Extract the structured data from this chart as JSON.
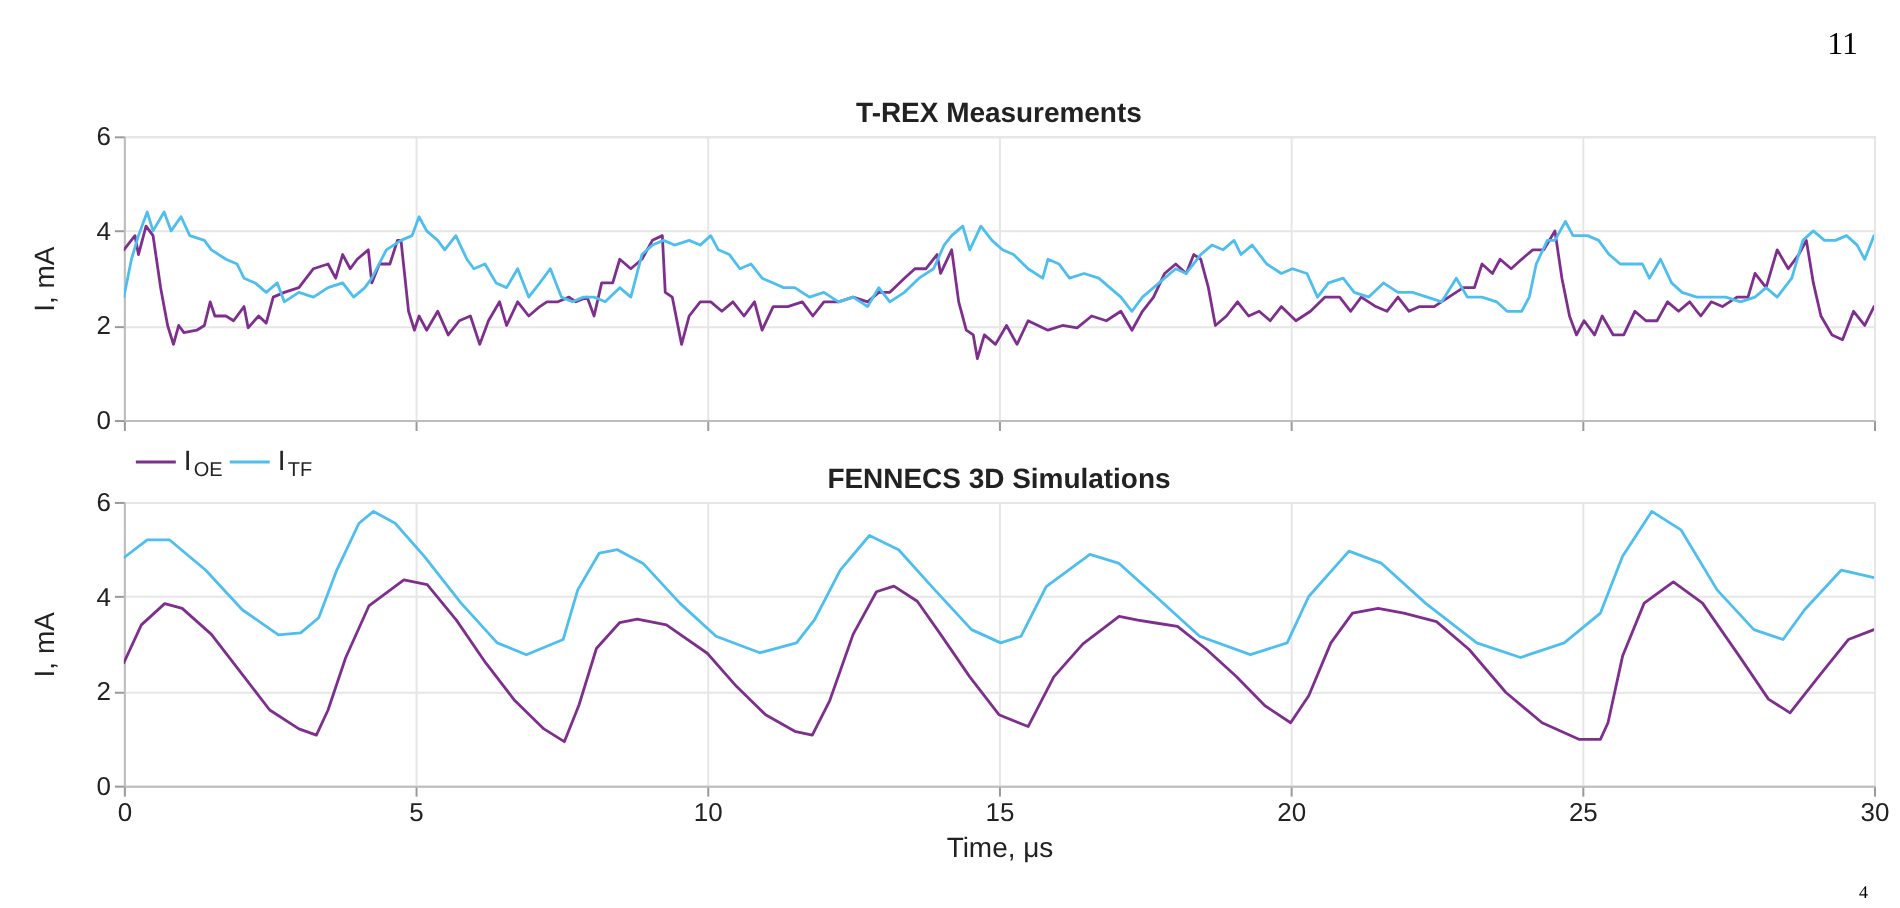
{
  "chart_data": [
    {
      "type": "line",
      "title": "T-REX Measurements",
      "ylabel": "I, mA",
      "xlim": [
        0,
        30
      ],
      "ylim": [
        0,
        6
      ],
      "xticks": [
        0,
        5,
        10,
        15,
        20,
        25,
        30
      ],
      "yticks": [
        0,
        2,
        4,
        6
      ],
      "grid": true,
      "tick_labels": "y",
      "annotations": [
        "11"
      ],
      "series": [
        {
          "color": "#7e2f8e",
          "x": [
            0,
            0.19,
            0.25,
            0.38,
            0.5,
            0.63,
            0.75,
            0.85,
            0.94,
            1.03,
            1.25,
            1.38,
            1.48,
            1.56,
            1.75,
            1.88,
            2.06,
            2.13,
            2.31,
            2.44,
            2.56,
            2.75,
            3.0,
            3.25,
            3.5,
            3.63,
            3.75,
            3.88,
            4.0,
            4.19,
            4.25,
            4.38,
            4.56,
            4.69,
            4.75,
            4.88,
            4.98,
            5.06,
            5.19,
            5.38,
            5.56,
            5.75,
            5.94,
            6.1,
            6.25,
            6.44,
            6.56,
            6.75,
            6.94,
            7.13,
            7.25,
            7.44,
            7.63,
            7.75,
            7.94,
            8.06,
            8.19,
            8.38,
            8.5,
            8.69,
            8.88,
            9.06,
            9.23,
            9.28,
            9.4,
            9.56,
            9.69,
            9.88,
            10.06,
            10.25,
            10.44,
            10.63,
            10.81,
            10.94,
            11.13,
            11.38,
            11.63,
            11.81,
            12.0,
            12.25,
            12.5,
            12.75,
            12.94,
            13.13,
            13.38,
            13.56,
            13.75,
            13.94,
            14.0,
            14.19,
            14.31,
            14.44,
            14.56,
            14.63,
            14.75,
            14.94,
            15.13,
            15.31,
            15.5,
            15.75,
            15.84,
            16.09,
            16.34,
            16.59,
            16.84,
            17.09,
            17.28,
            17.46,
            17.65,
            17.84,
            18.03,
            18.21,
            18.34,
            18.46,
            18.59,
            18.71,
            18.9,
            19.09,
            19.28,
            19.46,
            19.65,
            19.84,
            20.09,
            20.34,
            20.59,
            20.84,
            21.03,
            21.21,
            21.46,
            21.65,
            21.84,
            22.03,
            22.21,
            22.46,
            22.71,
            22.96,
            23.15,
            23.28,
            23.46,
            23.59,
            23.78,
            23.96,
            24.15,
            24.34,
            24.53,
            24.65,
            24.78,
            24.9,
            25.03,
            25.21,
            25.34,
            25.53,
            25.71,
            25.9,
            26.09,
            26.28,
            26.46,
            26.65,
            26.84,
            27.03,
            27.21,
            27.4,
            27.65,
            27.84,
            27.96,
            28.15,
            28.34,
            28.53,
            28.71,
            28.84,
            28.96,
            29.09,
            29.28,
            29.46,
            29.65,
            29.84,
            30
          ],
          "values": [
            3.6,
            3.9,
            3.5,
            4.1,
            3.9,
            2.8,
            2.0,
            1.6,
            2.0,
            1.85,
            1.9,
            2.0,
            2.5,
            2.2,
            2.2,
            2.1,
            2.4,
            1.95,
            2.2,
            2.05,
            2.6,
            2.7,
            2.8,
            3.2,
            3.3,
            3.0,
            3.5,
            3.2,
            3.4,
            3.6,
            2.9,
            3.3,
            3.3,
            3.8,
            3.8,
            2.3,
            1.9,
            2.2,
            1.9,
            2.3,
            1.8,
            2.1,
            2.2,
            1.6,
            2.1,
            2.5,
            2.0,
            2.5,
            2.2,
            2.4,
            2.5,
            2.5,
            2.6,
            2.5,
            2.6,
            2.2,
            2.9,
            2.9,
            3.4,
            3.2,
            3.4,
            3.8,
            3.9,
            2.7,
            2.6,
            1.6,
            2.2,
            2.5,
            2.5,
            2.3,
            2.5,
            2.2,
            2.5,
            1.9,
            2.4,
            2.4,
            2.5,
            2.2,
            2.5,
            2.5,
            2.6,
            2.5,
            2.7,
            2.7,
            3.0,
            3.2,
            3.2,
            3.5,
            3.1,
            3.6,
            2.5,
            1.9,
            1.8,
            1.3,
            1.8,
            1.6,
            2.0,
            1.6,
            2.1,
            1.95,
            1.9,
            2.0,
            1.95,
            2.2,
            2.1,
            2.3,
            1.9,
            2.3,
            2.6,
            3.1,
            3.3,
            3.1,
            3.5,
            3.4,
            2.8,
            2.0,
            2.2,
            2.5,
            2.2,
            2.3,
            2.1,
            2.4,
            2.1,
            2.3,
            2.6,
            2.6,
            2.3,
            2.6,
            2.4,
            2.3,
            2.6,
            2.3,
            2.4,
            2.4,
            2.6,
            2.8,
            2.8,
            3.3,
            3.1,
            3.4,
            3.2,
            3.4,
            3.6,
            3.6,
            4.0,
            3.0,
            2.2,
            1.8,
            2.1,
            1.8,
            2.2,
            1.8,
            1.8,
            2.3,
            2.1,
            2.1,
            2.5,
            2.3,
            2.5,
            2.2,
            2.5,
            2.4,
            2.6,
            2.6,
            3.1,
            2.8,
            3.6,
            3.2,
            3.5,
            3.8,
            2.9,
            2.2,
            1.8,
            1.7,
            2.3,
            2.0,
            2.4
          ]
        },
        {
          "color": "#4dbeee",
          "x": [
            0,
            0.13,
            0.25,
            0.4,
            0.5,
            0.69,
            0.81,
            0.98,
            1.13,
            1.38,
            1.5,
            1.75,
            1.94,
            2.06,
            2.25,
            2.44,
            2.63,
            2.75,
            3.0,
            3.25,
            3.5,
            3.75,
            3.94,
            4.13,
            4.25,
            4.5,
            4.75,
            4.94,
            5.06,
            5.19,
            5.38,
            5.5,
            5.69,
            5.88,
            6.0,
            6.19,
            6.38,
            6.56,
            6.75,
            6.94,
            7.13,
            7.31,
            7.5,
            7.69,
            7.88,
            8.06,
            8.25,
            8.5,
            8.69,
            8.88,
            9.06,
            9.25,
            9.44,
            9.69,
            9.88,
            10.06,
            10.19,
            10.38,
            10.56,
            10.75,
            10.94,
            11.13,
            11.31,
            11.5,
            11.75,
            12.0,
            12.25,
            12.5,
            12.75,
            12.94,
            13.13,
            13.38,
            13.63,
            13.88,
            14.06,
            14.19,
            14.38,
            14.5,
            14.69,
            14.88,
            15.06,
            15.25,
            15.5,
            15.75,
            15.84,
            16.03,
            16.21,
            16.46,
            16.71,
            16.9,
            17.09,
            17.28,
            17.46,
            17.65,
            17.84,
            18.03,
            18.21,
            18.46,
            18.65,
            18.84,
            19.03,
            19.15,
            19.34,
            19.59,
            19.84,
            20.03,
            20.28,
            20.46,
            20.65,
            20.9,
            21.09,
            21.34,
            21.59,
            21.84,
            22.09,
            22.34,
            22.59,
            22.84,
            23.03,
            23.28,
            23.53,
            23.71,
            23.96,
            24.09,
            24.21,
            24.4,
            24.53,
            24.71,
            24.84,
            25.09,
            25.28,
            25.46,
            25.65,
            25.84,
            26.03,
            26.15,
            26.34,
            26.53,
            26.71,
            26.96,
            27.21,
            27.46,
            27.71,
            27.96,
            28.15,
            28.34,
            28.59,
            28.78,
            28.96,
            29.15,
            29.34,
            29.53,
            29.71,
            29.84,
            30
          ],
          "values": [
            2.6,
            3.4,
            3.9,
            4.4,
            4.0,
            4.4,
            4.0,
            4.3,
            3.9,
            3.8,
            3.6,
            3.4,
            3.3,
            3.0,
            2.9,
            2.7,
            2.9,
            2.5,
            2.7,
            2.6,
            2.8,
            2.9,
            2.6,
            2.8,
            3.0,
            3.6,
            3.8,
            3.9,
            4.3,
            4.0,
            3.8,
            3.6,
            3.9,
            3.4,
            3.2,
            3.3,
            2.9,
            2.8,
            3.2,
            2.6,
            2.9,
            3.2,
            2.6,
            2.5,
            2.6,
            2.6,
            2.5,
            2.8,
            2.6,
            3.5,
            3.7,
            3.8,
            3.7,
            3.8,
            3.7,
            3.9,
            3.6,
            3.5,
            3.2,
            3.3,
            3.0,
            2.9,
            2.8,
            2.8,
            2.6,
            2.7,
            2.5,
            2.6,
            2.4,
            2.8,
            2.5,
            2.7,
            3.0,
            3.2,
            3.7,
            3.9,
            4.1,
            3.6,
            4.1,
            3.8,
            3.6,
            3.5,
            3.2,
            3.0,
            3.4,
            3.3,
            3.0,
            3.1,
            3.0,
            2.8,
            2.6,
            2.3,
            2.6,
            2.8,
            3.0,
            3.2,
            3.1,
            3.5,
            3.7,
            3.6,
            3.8,
            3.5,
            3.7,
            3.3,
            3.1,
            3.2,
            3.1,
            2.6,
            2.9,
            3.0,
            2.7,
            2.6,
            2.9,
            2.7,
            2.7,
            2.6,
            2.5,
            3.0,
            2.6,
            2.6,
            2.5,
            2.3,
            2.3,
            2.6,
            3.3,
            3.8,
            3.8,
            4.2,
            3.9,
            3.9,
            3.8,
            3.5,
            3.3,
            3.3,
            3.3,
            3.0,
            3.4,
            2.9,
            2.7,
            2.6,
            2.6,
            2.6,
            2.5,
            2.6,
            2.8,
            2.6,
            3.0,
            3.8,
            4.0,
            3.8,
            3.8,
            3.9,
            3.7,
            3.4,
            3.9
          ]
        }
      ]
    },
    {
      "type": "line",
      "title": "FENNECS 3D Simulations",
      "xlabel": "Time, μs",
      "ylabel": "I, mA",
      "xlim": [
        0,
        30
      ],
      "ylim": [
        0,
        6
      ],
      "xticks": [
        0,
        5,
        10,
        15,
        20,
        25,
        30
      ],
      "yticks": [
        0,
        2,
        4,
        6
      ],
      "grid": true,
      "legend": "top left",
      "annotations": [
        "4"
      ],
      "series": [
        {
          "name": "I$_{OE}$",
          "color": "#7e2f8e",
          "x": [
            0,
            0.3,
            0.7,
            1.0,
            1.5,
            2.0,
            2.5,
            3.0,
            3.3,
            3.5,
            3.8,
            4.2,
            4.8,
            5.2,
            5.7,
            6.2,
            6.7,
            7.2,
            7.55,
            7.8,
            8.1,
            8.5,
            8.8,
            9.3,
            10,
            10.5,
            11,
            11.5,
            11.8,
            12.1,
            12.5,
            12.9,
            13.2,
            13.6,
            14,
            14.5,
            15,
            15.5,
            15.94,
            16.44,
            17.06,
            17.38,
            17.69,
            18.06,
            18.56,
            19.06,
            19.56,
            20,
            20.31,
            20.69,
            21.06,
            21.5,
            21.94,
            22.5,
            23.06,
            23.69,
            24.31,
            24.94,
            25.31,
            25.44,
            25.69,
            26.06,
            26.56,
            27.06,
            27.69,
            28.19,
            28.56,
            29.06,
            29.56,
            30
          ],
          "values": [
            2.6,
            3.4,
            3.85,
            3.75,
            3.2,
            2.4,
            1.6,
            1.2,
            1.07,
            1.6,
            2.7,
            3.8,
            4.35,
            4.25,
            3.5,
            2.6,
            1.8,
            1.2,
            0.93,
            1.7,
            2.9,
            3.45,
            3.52,
            3.4,
            2.8,
            2.1,
            1.5,
            1.15,
            1.07,
            1.8,
            3.2,
            4.1,
            4.22,
            3.9,
            3.2,
            2.3,
            1.5,
            1.25,
            2.3,
            3.0,
            3.58,
            3.5,
            3.44,
            3.37,
            2.88,
            2.32,
            1.69,
            1.33,
            1.9,
            3.02,
            3.65,
            3.75,
            3.65,
            3.47,
            2.88,
            1.97,
            1.33,
            0.98,
            0.98,
            1.33,
            2.74,
            3.86,
            4.31,
            3.86,
            2.74,
            1.83,
            1.54,
            2.32,
            3.09,
            3.3
          ]
        },
        {
          "name": "I$_{TF}$",
          "color": "#4dbeee",
          "x": [
            0,
            0.4,
            0.78,
            1.4,
            2.03,
            2.65,
            3.03,
            3.34,
            3.65,
            4.03,
            4.28,
            4.65,
            5.15,
            5.78,
            6.4,
            6.9,
            7.53,
            7.78,
            8.15,
            8.46,
            8.9,
            9.53,
            10.15,
            10.9,
            11.53,
            11.84,
            12.28,
            12.78,
            13.28,
            13.9,
            14.53,
            15.03,
            15.38,
            15.81,
            16.56,
            17.06,
            17.69,
            18.44,
            19.31,
            19.94,
            20.31,
            21,
            21.56,
            22.31,
            23.19,
            23.94,
            24.69,
            25.31,
            25.69,
            26.19,
            26.69,
            27.31,
            27.94,
            28.44,
            28.81,
            29.44,
            30
          ],
          "values": [
            4.82,
            5.2,
            5.2,
            4.56,
            3.72,
            3.19,
            3.23,
            3.55,
            4.56,
            5.55,
            5.8,
            5.55,
            4.85,
            3.86,
            3.02,
            2.77,
            3.09,
            4.14,
            4.92,
            4.99,
            4.7,
            3.86,
            3.16,
            2.81,
            3.02,
            3.51,
            4.56,
            5.29,
            4.99,
            4.14,
            3.3,
            3.02,
            3.16,
            4.21,
            4.89,
            4.7,
            4.0,
            3.16,
            2.77,
            3.02,
            4.0,
            4.96,
            4.7,
            3.86,
            3.02,
            2.71,
            3.02,
            3.65,
            4.85,
            5.8,
            5.41,
            4.14,
            3.3,
            3.09,
            3.72,
            4.56,
            4.4
          ]
        }
      ]
    }
  ]
}
